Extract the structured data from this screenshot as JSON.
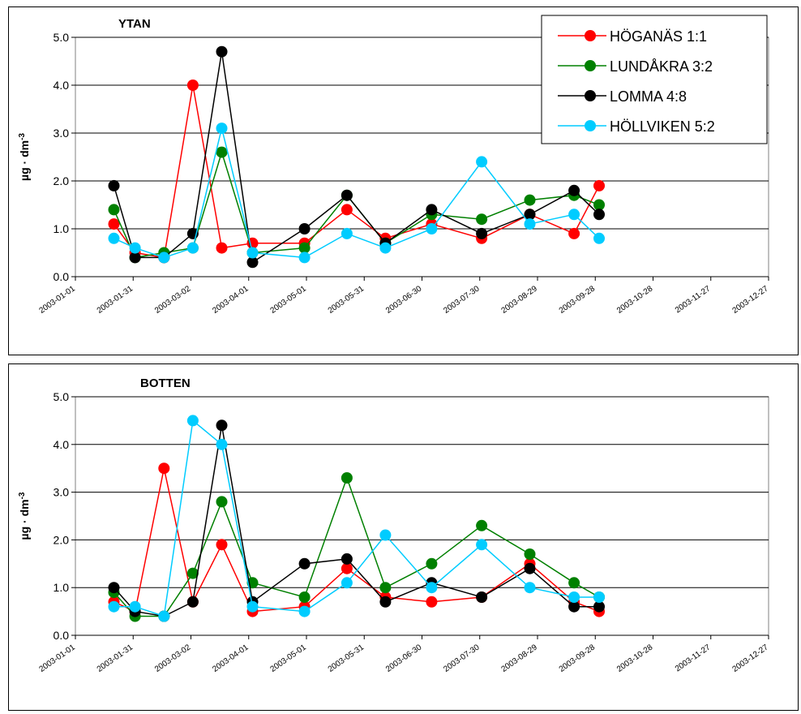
{
  "chart_data": [
    {
      "type": "line",
      "title": "YTAN",
      "ylabel": "µg · dm",
      "ylabel_sup": "-3",
      "ylim": [
        0,
        5
      ],
      "yticks": [
        "0.0",
        "1.0",
        "2.0",
        "3.0",
        "4.0",
        "5.0"
      ],
      "xticks": [
        "2003-01-01",
        "2003-01-31",
        "2003-03-02",
        "2003-04-01",
        "2003-05-01",
        "2003-05-31",
        "2003-06-30",
        "2003-07-30",
        "2003-08-29",
        "2003-09-28",
        "2003-10-28",
        "2003-11-27",
        "2003-12-27"
      ],
      "x": [
        20,
        31,
        46,
        61,
        76,
        92,
        119,
        141,
        161,
        185,
        211,
        236,
        259,
        272
      ],
      "legend_position": "top-right",
      "series": [
        {
          "name": "HÖGANÄS 1:1",
          "color": "#ff0000",
          "values": [
            1.1,
            0.5,
            0.4,
            4.0,
            0.6,
            0.7,
            0.7,
            1.4,
            0.8,
            1.1,
            0.8,
            1.3,
            0.9,
            1.9
          ]
        },
        {
          "name": "LUNDÅKRA 3:2",
          "color": "#008000",
          "values": [
            1.4,
            0.4,
            0.5,
            0.6,
            2.6,
            0.5,
            0.6,
            1.7,
            0.7,
            1.3,
            1.2,
            1.6,
            1.7,
            1.5
          ]
        },
        {
          "name": "LOMMA 4:8",
          "color": "#000000",
          "values": [
            1.9,
            0.4,
            0.4,
            0.9,
            4.7,
            0.3,
            1.0,
            1.7,
            0.7,
            1.4,
            0.9,
            1.3,
            1.8,
            1.3
          ]
        },
        {
          "name": "HÖLLVIKEN 5:2",
          "color": "#00ccff",
          "values": [
            0.8,
            0.6,
            0.4,
            0.6,
            3.1,
            0.5,
            0.4,
            0.9,
            0.6,
            1.0,
            2.4,
            1.1,
            1.3,
            0.8
          ]
        }
      ]
    },
    {
      "type": "line",
      "title": "BOTTEN",
      "ylabel": "µg · dm",
      "ylabel_sup": "-3",
      "ylim": [
        0,
        5
      ],
      "yticks": [
        "0.0",
        "1.0",
        "2.0",
        "3.0",
        "4.0",
        "5.0"
      ],
      "xticks": [
        "2003-01-01",
        "2003-01-31",
        "2003-03-02",
        "2003-04-01",
        "2003-05-01",
        "2003-05-31",
        "2003-06-30",
        "2003-07-30",
        "2003-08-29",
        "2003-09-28",
        "2003-10-28",
        "2003-11-27",
        "2003-12-27"
      ],
      "x": [
        20,
        31,
        46,
        61,
        76,
        92,
        119,
        141,
        161,
        185,
        211,
        236,
        259,
        272
      ],
      "series": [
        {
          "name": "HÖGANÄS 1:1",
          "color": "#ff0000",
          "values": [
            0.7,
            0.5,
            3.5,
            0.7,
            1.9,
            0.5,
            0.6,
            1.4,
            0.8,
            0.7,
            0.8,
            1.5,
            0.7,
            0.5
          ]
        },
        {
          "name": "LUNDÅKRA 3:2",
          "color": "#008000",
          "values": [
            0.9,
            0.4,
            0.4,
            1.3,
            2.8,
            1.1,
            0.8,
            3.3,
            1.0,
            1.5,
            2.3,
            1.7,
            1.1,
            0.8
          ]
        },
        {
          "name": "LOMMA 4:8",
          "color": "#000000",
          "values": [
            1.0,
            0.5,
            0.4,
            0.7,
            4.4,
            0.7,
            1.5,
            1.6,
            0.7,
            1.1,
            0.8,
            1.4,
            0.6,
            0.6
          ]
        },
        {
          "name": "HÖLLVIKEN 5:2",
          "color": "#00ccff",
          "values": [
            0.6,
            0.6,
            0.4,
            4.5,
            4.0,
            0.6,
            0.5,
            1.1,
            2.1,
            1.0,
            1.9,
            1.0,
            0.8,
            0.8
          ]
        }
      ]
    }
  ]
}
